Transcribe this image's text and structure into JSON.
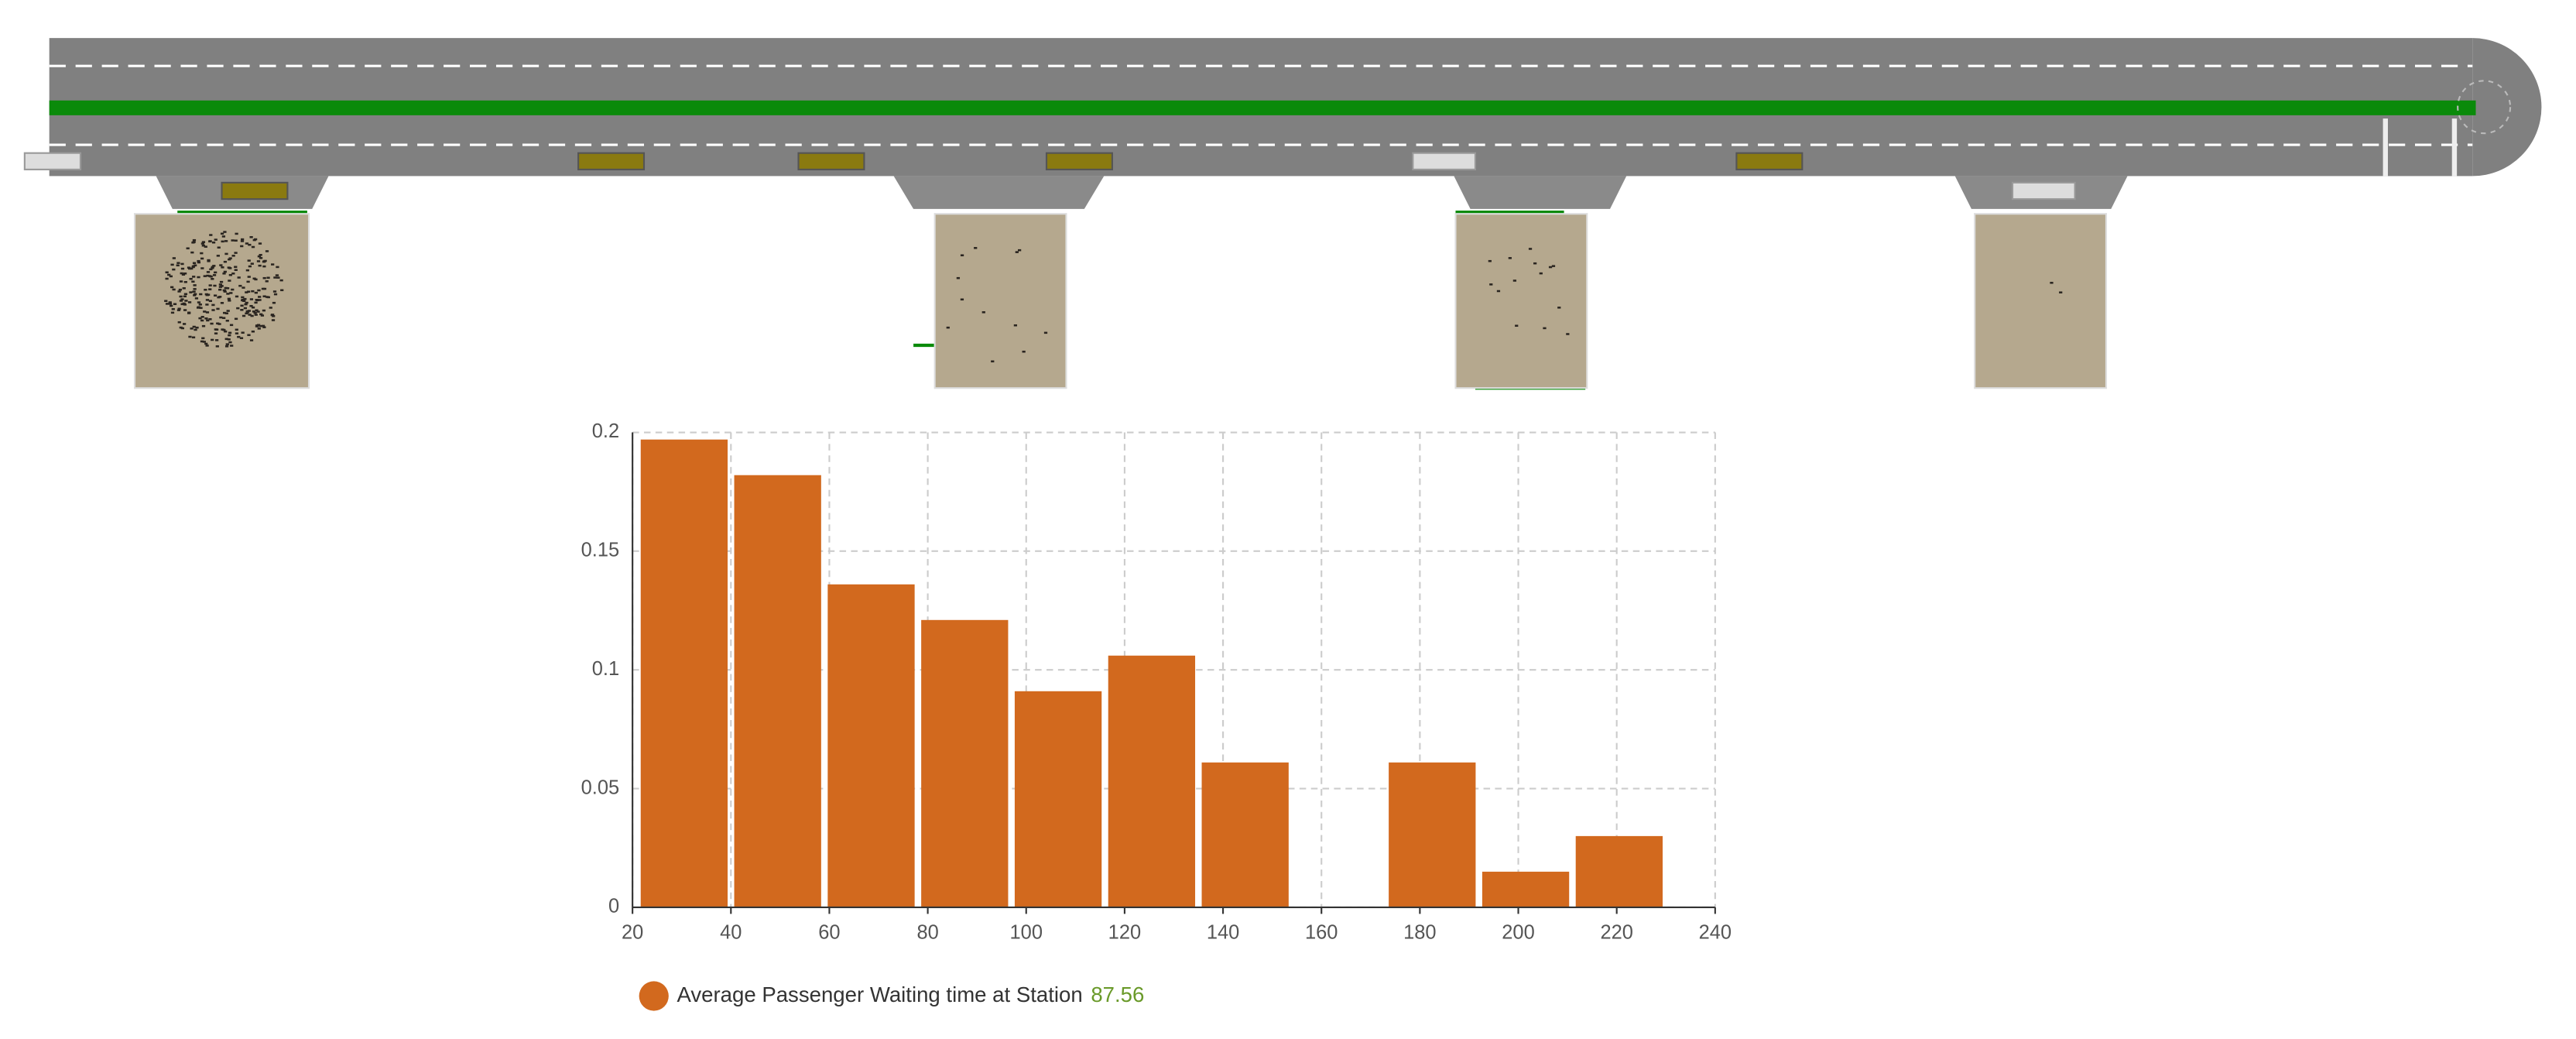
{
  "chart_data": {
    "type": "histogram",
    "bins": [
      21,
      40,
      59,
      78,
      97,
      116,
      135,
      154,
      173,
      192,
      211,
      230
    ],
    "values": [
      0.197,
      0.182,
      0.136,
      0.121,
      0.091,
      0.106,
      0.061,
      0,
      0.061,
      0.015,
      0.03
    ],
    "color": "#d2691e",
    "xlim": [
      20,
      240
    ],
    "xticks": [
      20,
      40,
      60,
      80,
      100,
      120,
      140,
      160,
      180,
      200,
      220,
      240
    ],
    "ylim": [
      0,
      0.2
    ],
    "yticks": [
      0,
      0.05,
      0.1,
      0.15,
      0.2
    ],
    "grid": true,
    "legend": "Average Passenger Waiting time at Station",
    "legend_value": 87.56
  }
}
